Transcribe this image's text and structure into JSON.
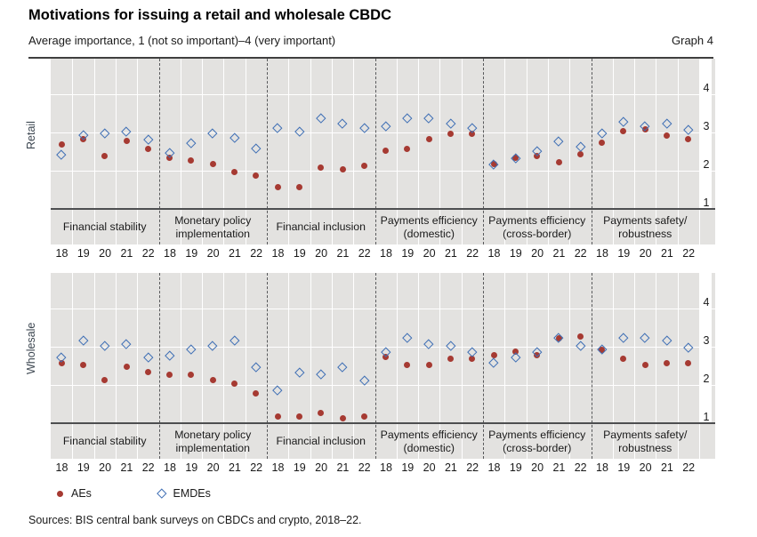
{
  "header": {
    "title": "Motivations for issuing a retail and wholesale CBDC",
    "subtitle": "Average importance, 1 (not so important)–4 (very important)",
    "graph_label": "Graph 4"
  },
  "legend": {
    "items": [
      {
        "label": "AEs",
        "marker": "dot",
        "color": "#a63a32"
      },
      {
        "label": "EMDEs",
        "marker": "diamond",
        "color": "#3f6fb5"
      }
    ]
  },
  "footer": {
    "source": "Sources: BIS central bank surveys on CBDCs and crypto, 2018–22."
  },
  "colors": {
    "aes": "#a63a32",
    "emdes": "#3f6fb5",
    "plot_bg": "#e3e2e0",
    "axis": "#4d4e50",
    "dashed_separator": "#58595b"
  },
  "chart_data": {
    "type": "scatter",
    "years": [
      "18",
      "19",
      "20",
      "21",
      "22"
    ],
    "ylim": [
      1,
      4
    ],
    "yticks": [
      4,
      3,
      2,
      1
    ],
    "grid": true,
    "legend_position": "bottom",
    "categories": [
      {
        "name": "Financial stability",
        "lines": [
          "Financial stability"
        ]
      },
      {
        "name": "Monetary policy implementation",
        "lines": [
          "Monetary policy",
          "implementation"
        ]
      },
      {
        "name": "Financial inclusion",
        "lines": [
          "Financial inclusion"
        ]
      },
      {
        "name": "Payments efficiency (domestic)",
        "lines": [
          "Payments efficiency",
          "(domestic)"
        ]
      },
      {
        "name": "Payments efficiency (cross-border)",
        "lines": [
          "Payments efficiency",
          "(cross-border)"
        ]
      },
      {
        "name": "Payments safety/robustness",
        "lines": [
          "Payments safety/",
          "robustness"
        ]
      }
    ],
    "panels": [
      {
        "label": "Retail",
        "series": [
          {
            "name": "AEs",
            "marker": "dot",
            "values": [
              [
                2.7,
                2.85,
                2.4,
                2.8,
                2.6
              ],
              [
                2.35,
                2.3,
                2.2,
                2.0,
                1.9
              ],
              [
                1.6,
                1.6,
                2.1,
                2.05,
                2.15
              ],
              [
                2.55,
                2.6,
                2.85,
                3.0,
                3.0
              ],
              [
                2.2,
                2.35,
                2.4,
                2.25,
                2.45
              ],
              [
                2.75,
                3.05,
                3.1,
                2.95,
                2.85
              ]
            ]
          },
          {
            "name": "EMDEs",
            "marker": "diamond",
            "values": [
              [
                2.45,
                2.95,
                3.0,
                3.05,
                2.85
              ],
              [
                2.5,
                2.75,
                3.0,
                2.9,
                2.6
              ],
              [
                3.15,
                3.05,
                3.4,
                3.25,
                3.15
              ],
              [
                3.2,
                3.4,
                3.4,
                3.25,
                3.15
              ],
              [
                2.2,
                2.35,
                2.55,
                2.8,
                2.65
              ],
              [
                3.0,
                3.3,
                3.2,
                3.25,
                3.1
              ]
            ]
          }
        ]
      },
      {
        "label": "Wholesale",
        "series": [
          {
            "name": "AEs",
            "marker": "dot",
            "values": [
              [
                2.6,
                2.55,
                2.15,
                2.5,
                2.35
              ],
              [
                2.3,
                2.3,
                2.15,
                2.05,
                1.8
              ],
              [
                1.2,
                1.2,
                1.3,
                1.15,
                1.2
              ],
              [
                2.75,
                2.55,
                2.55,
                2.7,
                2.7
              ],
              [
                2.8,
                2.9,
                2.8,
                3.25,
                3.3
              ],
              [
                2.95,
                2.7,
                2.55,
                2.6,
                2.6
              ]
            ]
          },
          {
            "name": "EMDEs",
            "marker": "diamond",
            "values": [
              [
                2.75,
                3.2,
                3.05,
                3.1,
                2.75
              ],
              [
                2.8,
                2.95,
                3.05,
                3.2,
                2.5
              ],
              [
                1.9,
                2.35,
                2.3,
                2.5,
                2.15
              ],
              [
                2.9,
                3.25,
                3.1,
                3.05,
                2.9
              ],
              [
                2.6,
                2.75,
                2.9,
                3.25,
                3.05
              ],
              [
                2.95,
                3.25,
                3.25,
                3.2,
                3.0
              ]
            ]
          }
        ]
      }
    ]
  }
}
